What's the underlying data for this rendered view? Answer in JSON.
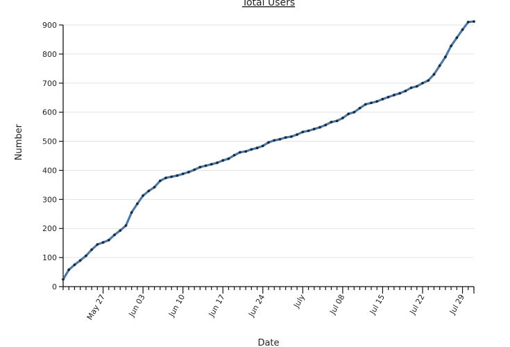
{
  "chart_data": {
    "type": "line",
    "title": "Total Users",
    "xlabel": "Date",
    "ylabel": "Number",
    "ylim": [
      0,
      900
    ],
    "xlim": [
      "2018-05-20",
      "2018-07-31"
    ],
    "grid": true,
    "y_ticks": [
      0,
      100,
      200,
      300,
      400,
      500,
      600,
      700,
      800,
      900
    ],
    "x_ticks": [
      {
        "date": "2018-05-27",
        "label": "May 27"
      },
      {
        "date": "2018-06-03",
        "label": "Jun 03"
      },
      {
        "date": "2018-06-10",
        "label": "Jun 10"
      },
      {
        "date": "2018-06-17",
        "label": "Jun 17"
      },
      {
        "date": "2018-06-24",
        "label": "Jun 24"
      },
      {
        "date": "2018-07-01",
        "label": "July"
      },
      {
        "date": "2018-07-08",
        "label": "Jul 08"
      },
      {
        "date": "2018-07-15",
        "label": "Jul 15"
      },
      {
        "date": "2018-07-22",
        "label": "Jul 22"
      },
      {
        "date": "2018-07-29",
        "label": "Jul 29"
      }
    ],
    "x": [
      "2018-05-20",
      "2018-05-21",
      "2018-05-22",
      "2018-05-23",
      "2018-05-24",
      "2018-05-25",
      "2018-05-26",
      "2018-05-27",
      "2018-05-28",
      "2018-05-29",
      "2018-05-30",
      "2018-05-31",
      "2018-06-01",
      "2018-06-02",
      "2018-06-03",
      "2018-06-04",
      "2018-06-05",
      "2018-06-06",
      "2018-06-07",
      "2018-06-08",
      "2018-06-09",
      "2018-06-10",
      "2018-06-11",
      "2018-06-12",
      "2018-06-13",
      "2018-06-14",
      "2018-06-15",
      "2018-06-16",
      "2018-06-17",
      "2018-06-18",
      "2018-06-19",
      "2018-06-20",
      "2018-06-21",
      "2018-06-22",
      "2018-06-23",
      "2018-06-24",
      "2018-06-25",
      "2018-06-26",
      "2018-06-27",
      "2018-06-28",
      "2018-06-29",
      "2018-06-30",
      "2018-07-01",
      "2018-07-02",
      "2018-07-03",
      "2018-07-04",
      "2018-07-05",
      "2018-07-06",
      "2018-07-07",
      "2018-07-08",
      "2018-07-09",
      "2018-07-10",
      "2018-07-11",
      "2018-07-12",
      "2018-07-13",
      "2018-07-14",
      "2018-07-15",
      "2018-07-16",
      "2018-07-17",
      "2018-07-18",
      "2018-07-19",
      "2018-07-20",
      "2018-07-21",
      "2018-07-22",
      "2018-07-23",
      "2018-07-24",
      "2018-07-25",
      "2018-07-26",
      "2018-07-27",
      "2018-07-28",
      "2018-07-29",
      "2018-07-30",
      "2018-07-31"
    ],
    "series": [
      {
        "values": [
          25,
          58,
          75,
          90,
          106,
          127,
          145,
          152,
          160,
          178,
          193,
          210,
          255,
          285,
          313,
          329,
          342,
          364,
          374,
          378,
          382,
          388,
          394,
          402,
          411,
          416,
          421,
          426,
          434,
          440,
          452,
          462,
          465,
          472,
          477,
          484,
          496,
          503,
          507,
          513,
          516,
          523,
          532,
          536,
          542,
          548,
          556,
          566,
          570,
          580,
          594,
          600,
          614,
          627,
          632,
          637,
          645,
          652,
          659,
          665,
          673,
          684,
          689,
          700,
          709,
          730,
          760,
          790,
          828,
          856,
          884,
          910,
          912
        ],
        "color": "#4a78a8"
      }
    ]
  }
}
